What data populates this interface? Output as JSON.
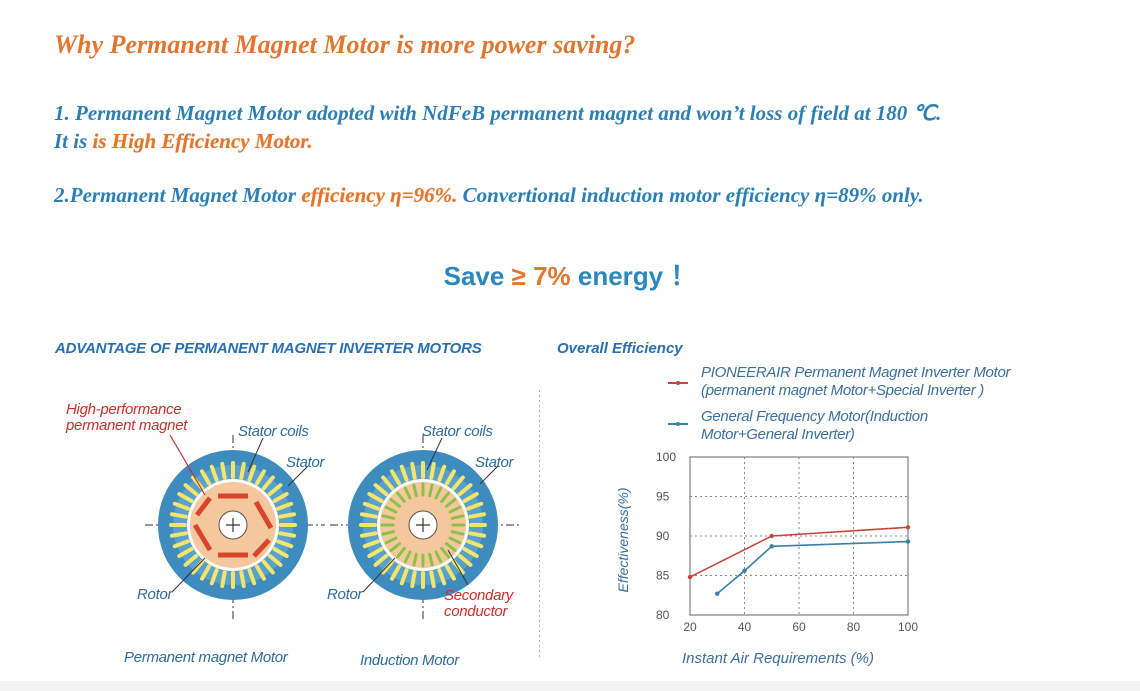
{
  "heading": "Why Permanent Magnet Motor is more power  saving?",
  "point1": {
    "line1": "1. Permanent Magnet Motor adopted with NdFeB permanent magnet and won’t loss of field at 180 ℃.",
    "line2_prefix": "It is ",
    "line2_highlight": "is High Efficiency Motor."
  },
  "point2": {
    "prefix": "2.Permanent Magnet Motor ",
    "highlight": "efficiency η=96%.",
    "suffix": " Convertional induction motor efficiency η=89% only."
  },
  "save": {
    "prefix": "Save ",
    "value": "≥ 7%",
    "suffix": " energy ！"
  },
  "diagram": {
    "title": "ADVANTAGE OF PERMANENT MAGNET INVERTER MOTORS",
    "pm_motor": {
      "magnet_label_1": "High-performance",
      "magnet_label_2": "permanent magnet",
      "stator_coils": "Stator coils",
      "stator": "Stator",
      "rotor": "Rotor",
      "caption": "Permanent magnet Motor"
    },
    "induction_motor": {
      "stator_coils": "Stator coils",
      "stator": "Stator",
      "rotor": "Rotor",
      "conductor_1": "Secondary",
      "conductor_2": "conductor",
      "caption": "Induction Motor"
    },
    "colors": {
      "stator": "#3d8bbf",
      "coils": "#f3e56a",
      "rotor": "#f4c89c",
      "magnet": "#d9452b",
      "conductor": "#8dc04a"
    }
  },
  "chart_data": {
    "type": "line",
    "title": "Overall Efficiency",
    "xlabel": "Instant Air Requirements (%)",
    "ylabel": "Effectiveness(%)",
    "xlim": [
      20,
      100
    ],
    "ylim": [
      80,
      100
    ],
    "x_ticks": [
      "20",
      "40",
      "60",
      "80",
      "100"
    ],
    "y_ticks": [
      "100",
      "95",
      "90",
      "85",
      "80"
    ],
    "grid": true,
    "legend_position": "top",
    "series": [
      {
        "name": "PIONEERAIR Permanent Magnet Inverter Motor (permanent magnet Motor+Special Inverter )",
        "legend_line1": "PIONEERAIR Permanent Magnet Inverter Motor",
        "legend_line2": "(permanent magnet Motor+Special Inverter )",
        "color": "#c8463c",
        "points": [
          [
            20,
            84.8
          ],
          [
            50,
            90
          ],
          [
            100,
            91.1
          ]
        ]
      },
      {
        "name": "General Frequency Motor(Induction Motor+General Inverter)",
        "legend_line1": "General Frequency Motor(Induction",
        "legend_line2": "Motor+General Inverter)",
        "color": "#3a7fa8",
        "points": [
          [
            30,
            82.7
          ],
          [
            40,
            85.6
          ],
          [
            50,
            88.7
          ],
          [
            100,
            89.3
          ]
        ]
      }
    ]
  }
}
